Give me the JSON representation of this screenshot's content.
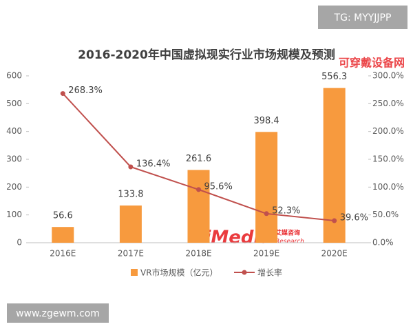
{
  "chart_data": {
    "type": "combo",
    "title": "2016-2020年中国虚拟现实行业市场规模及预测",
    "categories": [
      "2016E",
      "2017E",
      "2018E",
      "2019E",
      "2020E"
    ],
    "series": [
      {
        "name": "VR市场规模（亿元）",
        "type": "bar",
        "color": "#f79a3e",
        "values": [
          56.6,
          133.8,
          261.6,
          398.4,
          556.3
        ]
      },
      {
        "name": "增长率",
        "type": "line",
        "axis": "y2",
        "color": "#c0504d",
        "values": [
          268.3,
          136.4,
          95.6,
          52.3,
          39.6
        ],
        "value_labels": [
          "268.3%",
          "136.4%",
          "95.6%",
          "52.3%",
          "39.6%"
        ]
      }
    ],
    "ylim": [
      0,
      600
    ],
    "yticks": [
      0,
      100,
      200,
      300,
      400,
      500,
      600
    ],
    "y2lim": [
      0,
      300
    ],
    "y2ticks": [
      {
        "value": 0,
        "label": "0.0%"
      },
      {
        "value": 50,
        "label": "50.0%"
      },
      {
        "value": 100,
        "label": "100.0%"
      },
      {
        "value": 150,
        "label": "150.0%"
      },
      {
        "value": 200,
        "label": "200.0%"
      },
      {
        "value": 250,
        "label": "250.0%"
      },
      {
        "value": 300,
        "label": "300.0%"
      }
    ],
    "grid": false,
    "legend": "bottom"
  },
  "overlays": {
    "top_tag": "TG: MYYJJPP",
    "site": "www.zgewm.com",
    "brand": "可穿戴设备网",
    "logo": "iiMedia",
    "logo_sub": "Research",
    "logo_cn": "艾媒咨询"
  }
}
